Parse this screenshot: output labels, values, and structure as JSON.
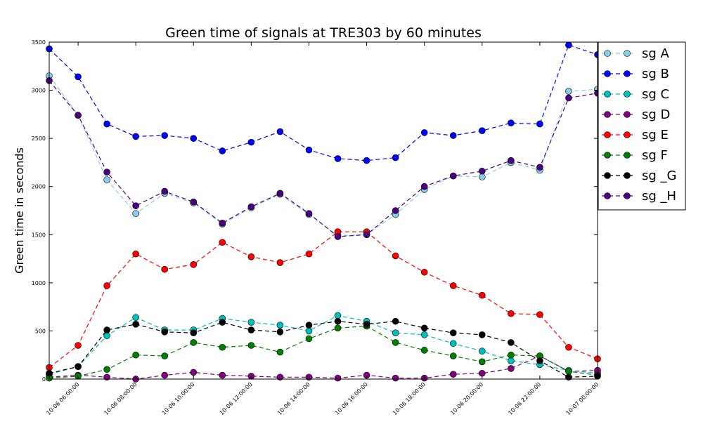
{
  "chart_data": {
    "type": "line",
    "title": "Green time of signals  at TRE303 by 60 minutes",
    "xlabel": "",
    "ylabel": "Green time in seconds",
    "ylim": [
      0,
      3500
    ],
    "yticks": [
      "0",
      "500",
      "1000",
      "1500",
      "2000",
      "2500",
      "3000",
      "3500"
    ],
    "xticks": [
      "10-06 06:00:00",
      "10-06 08:00:00",
      "10-06 10:00:00",
      "10-06 12:00:00",
      "10-06 14:00:00",
      "10-06 16:00:00",
      "10-06 18:00:00",
      "10-06 20:00:00",
      "10-06 22:00:00",
      "10-07 00:00:00"
    ],
    "x": [
      "10-06 05:00",
      "10-06 06:00",
      "10-06 07:00",
      "10-06 08:00",
      "10-06 09:00",
      "10-06 10:00",
      "10-06 11:00",
      "10-06 12:00",
      "10-06 13:00",
      "10-06 14:00",
      "10-06 15:00",
      "10-06 16:00",
      "10-06 17:00",
      "10-06 18:00",
      "10-06 19:00",
      "10-06 20:00",
      "10-06 21:00",
      "10-06 22:00",
      "10-06 23:00",
      "10-07 00:00"
    ],
    "grid": false,
    "legend_position": "outside-right-top",
    "series": [
      {
        "name": "sg A",
        "color": "#87ceeb",
        "values": [
          3150,
          2740,
          2070,
          1720,
          1930,
          1830,
          1610,
          1780,
          1920,
          1710,
          1490,
          1500,
          1710,
          1970,
          2110,
          2100,
          2250,
          2170,
          2990,
          3010
        ]
      },
      {
        "name": "sg B",
        "color": "#0000ff",
        "values": [
          3430,
          3140,
          2650,
          2520,
          2530,
          2500,
          2370,
          2460,
          2570,
          2380,
          2290,
          2270,
          2300,
          2560,
          2530,
          2580,
          2660,
          2650,
          3470,
          3370
        ]
      },
      {
        "name": "sg C",
        "color": "#00bfbf",
        "values": [
          50,
          130,
          450,
          640,
          510,
          510,
          630,
          590,
          560,
          500,
          660,
          600,
          480,
          460,
          370,
          290,
          190,
          150,
          90,
          60
        ]
      },
      {
        "name": "sg D",
        "color": "#800080",
        "values": [
          20,
          40,
          20,
          0,
          40,
          70,
          40,
          30,
          20,
          20,
          10,
          40,
          10,
          10,
          50,
          60,
          110,
          240,
          80,
          90
        ]
      },
      {
        "name": "sg E",
        "color": "#ff0000",
        "values": [
          120,
          350,
          970,
          1300,
          1140,
          1190,
          1420,
          1270,
          1210,
          1300,
          1530,
          1530,
          1280,
          1110,
          970,
          870,
          680,
          670,
          330,
          210
        ]
      },
      {
        "name": "sg F",
        "color": "#008000",
        "values": [
          10,
          30,
          100,
          250,
          240,
          380,
          330,
          350,
          280,
          420,
          530,
          550,
          380,
          300,
          240,
          180,
          250,
          240,
          80,
          40
        ]
      },
      {
        "name": "sg _G",
        "color": "#000000",
        "values": [
          60,
          130,
          510,
          570,
          490,
          480,
          590,
          510,
          490,
          560,
          600,
          570,
          600,
          530,
          480,
          460,
          380,
          190,
          20,
          30
        ]
      },
      {
        "name": "sg _H",
        "color": "#4b0082",
        "values": [
          3100,
          2740,
          2150,
          1800,
          1950,
          1840,
          1620,
          1790,
          1930,
          1720,
          1480,
          1500,
          1750,
          2000,
          2110,
          2160,
          2270,
          2200,
          2920,
          2970
        ]
      }
    ]
  }
}
